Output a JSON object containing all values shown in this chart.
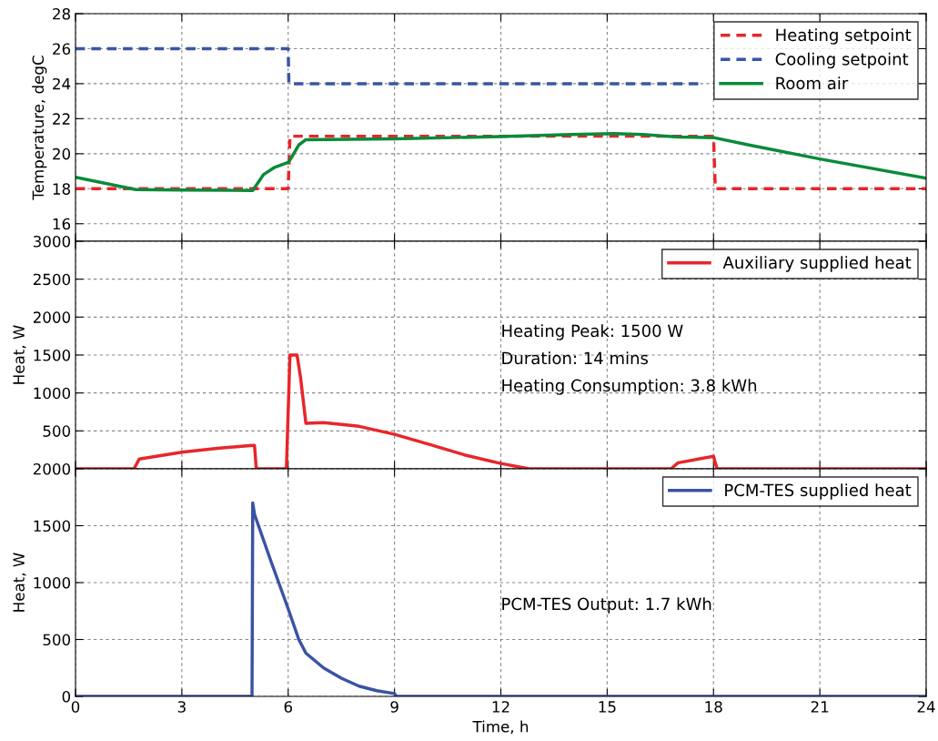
{
  "chart_data": [
    {
      "type": "line",
      "ylabel": "Temperature, degC",
      "xlim": [
        0,
        24
      ],
      "xticks": [
        0,
        3,
        6,
        9,
        12,
        15,
        18,
        21,
        24
      ],
      "ylim": [
        15,
        28
      ],
      "yticks": [
        16,
        18,
        20,
        22,
        24,
        26,
        28
      ],
      "grid": true,
      "legend": "top right",
      "tick_labels": "y",
      "series": [
        {
          "name": "Heating setpoint",
          "color": "#e8262a",
          "line_style": "dashed",
          "x": [
            0,
            6,
            6.05,
            18,
            18.05,
            24
          ],
          "values": [
            18,
            18,
            21,
            21,
            18,
            18
          ]
        },
        {
          "name": "Cooling setpoint",
          "color": "#3b54a4",
          "line_style": "dashed",
          "x": [
            0,
            6,
            6.02,
            17.6
          ],
          "values": [
            26,
            26,
            24,
            24
          ]
        },
        {
          "name": "Room air",
          "color": "#0a8a3a",
          "line_style": "solid",
          "x": [
            0,
            1.7,
            3,
            5,
            5.3,
            5.6,
            6,
            6.1,
            6.3,
            6.5,
            9,
            12,
            14,
            15.2,
            16,
            17,
            18,
            19,
            21,
            24
          ],
          "values": [
            18.65,
            17.95,
            17.92,
            17.9,
            18.8,
            19.2,
            19.5,
            19.8,
            20.5,
            20.8,
            20.85,
            20.98,
            21.1,
            21.15,
            21.1,
            20.95,
            20.92,
            20.5,
            19.7,
            18.6
          ]
        }
      ]
    },
    {
      "type": "line",
      "ylabel": "Heat, W",
      "xlim": [
        0,
        24
      ],
      "xticks": [
        0,
        3,
        6,
        9,
        12,
        15,
        18,
        21,
        24
      ],
      "ylim": [
        0,
        3000
      ],
      "yticks": [
        {
          "value": 0,
          "label": null
        },
        500,
        1000,
        1500,
        2000,
        2500,
        3000
      ],
      "grid": true,
      "legend": "top right",
      "tick_labels": "y",
      "annotations": [
        "Heating Peak: 1500 W",
        "Duration: 14 mins",
        "Heating Consumption: 3.8 kWh"
      ],
      "series": [
        {
          "name": "Auxiliary supplied heat",
          "color": "#e8262a",
          "line_style": "solid",
          "x": [
            0,
            1.65,
            1.8,
            3,
            4,
            5,
            5.05,
            5.1,
            5.95,
            6.05,
            6.25,
            6.35,
            6.5,
            7,
            8,
            9,
            10,
            11,
            12,
            12.8,
            16.8,
            17,
            18,
            18.1,
            24
          ],
          "values": [
            0,
            0,
            130,
            220,
            270,
            310,
            310,
            0,
            0,
            1500,
            1500,
            1200,
            600,
            610,
            560,
            455,
            320,
            180,
            70,
            0,
            0,
            80,
            165,
            0,
            0
          ]
        }
      ]
    },
    {
      "type": "line",
      "xlabel": "Time, h",
      "ylabel": "Heat, W",
      "xlim": [
        0,
        24
      ],
      "xticks": [
        0,
        3,
        6,
        9,
        12,
        15,
        18,
        21,
        24
      ],
      "ylim": [
        0,
        2000
      ],
      "yticks": [
        0,
        500,
        1000,
        1500,
        2000
      ],
      "grid": true,
      "legend": "top right",
      "annotations": [
        "PCM-TES Output: 1.7 kWh"
      ],
      "series": [
        {
          "name": "PCM-TES supplied heat",
          "color": "#3a53a4",
          "line_style": "solid",
          "x": [
            0,
            4.98,
            5,
            5.05,
            5.5,
            6,
            6.3,
            6.5,
            7,
            7.5,
            8,
            8.5,
            9,
            9.05,
            24
          ],
          "values": [
            0,
            0,
            1700,
            1600,
            1200,
            770,
            500,
            380,
            250,
            160,
            90,
            50,
            25,
            0,
            0
          ]
        }
      ]
    }
  ]
}
